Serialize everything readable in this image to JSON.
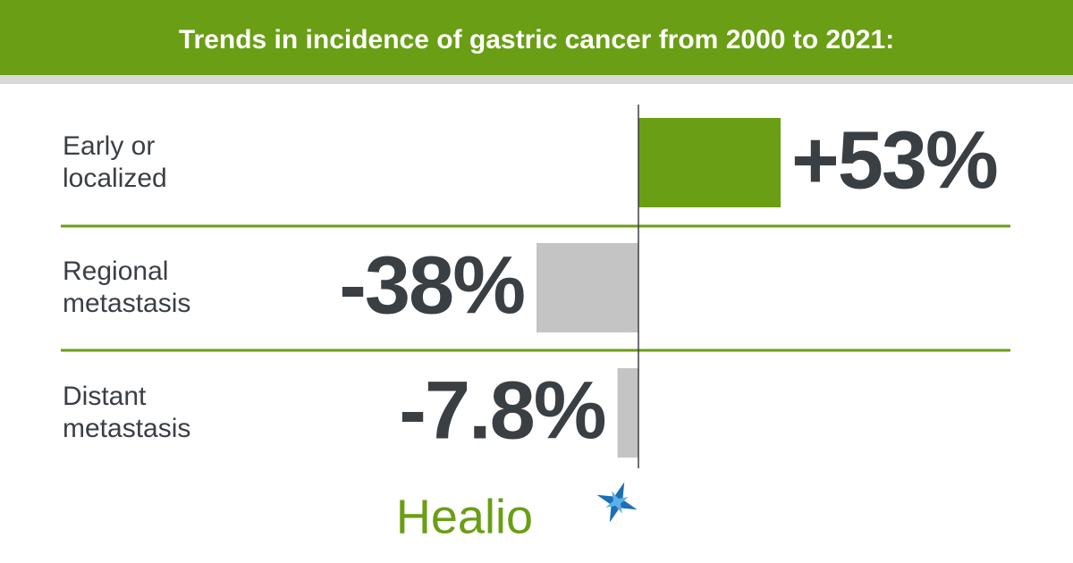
{
  "chart_data": {
    "type": "bar",
    "orientation": "horizontal",
    "title": "Trends in incidence of gastric cancer from 2000 to 2021:",
    "categories": [
      "Early or localized",
      "Regional metastasis",
      "Distant metastasis"
    ],
    "values": [
      53,
      -38,
      -7.8
    ],
    "value_labels": [
      "+53%",
      "-38%",
      "-7.8%"
    ],
    "colors": [
      "#6a9e14",
      "#c4c4c4",
      "#c4c4c4"
    ]
  },
  "brand": "Healio"
}
